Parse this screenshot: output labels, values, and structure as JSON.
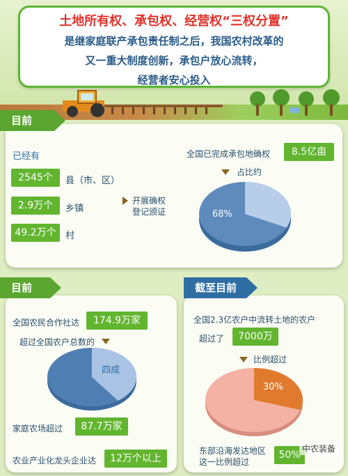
{
  "header": {
    "title": "土地所有权、承包权、经营权“三权分置”",
    "line1": "是继家庭联产承包责任制之后，我国农村改革的",
    "line2": "又一重大制度创新，承包户放心流转，",
    "line3": "经营者安心投入"
  },
  "section1": {
    "tab": "目前",
    "already": "已经有",
    "rows": [
      {
        "value": "2545个",
        "unit": "县（市、区）"
      },
      {
        "value": "2.9万个",
        "unit": "乡镇"
      },
      {
        "value": "49.2万个",
        "unit": "村"
      }
    ],
    "action1": "开展确权",
    "action2": "登记颁证",
    "stat_label": "全国已完成承包地确权",
    "stat_value": "8.5亿亩",
    "ratio_label": "占比约",
    "pie_label": "68%",
    "pie_fraction": 0.68
  },
  "section2": {
    "tab": "目前",
    "coop_label": "全国农民合作社达",
    "coop_value": "174.9万家",
    "exceed_label": "超过全国农户总数的",
    "pie_label": "四成",
    "pie_fraction": 0.4,
    "farm_label": "家庭农场超过",
    "farm_value": "87.7万家",
    "ent_label": "农业产业化龙头企业达",
    "ent_value": "12万个以上"
  },
  "section3": {
    "tab": "截至目前",
    "line1": "全国2.3亿农户中流转土地的农户",
    "line2": "超过了",
    "value": "7000万",
    "ratio_label": "比例超过",
    "pie_label": "30%",
    "pie_fraction": 0.3,
    "east1": "东部沿海发达地区",
    "east2": "这一比例超过",
    "east_value": "50%"
  },
  "watermark": "中农装备",
  "colors": {
    "green": "#62b52f",
    "blue": "#2f6ea3",
    "orange": "#e07b2e",
    "pink": "#f4b2a4"
  }
}
